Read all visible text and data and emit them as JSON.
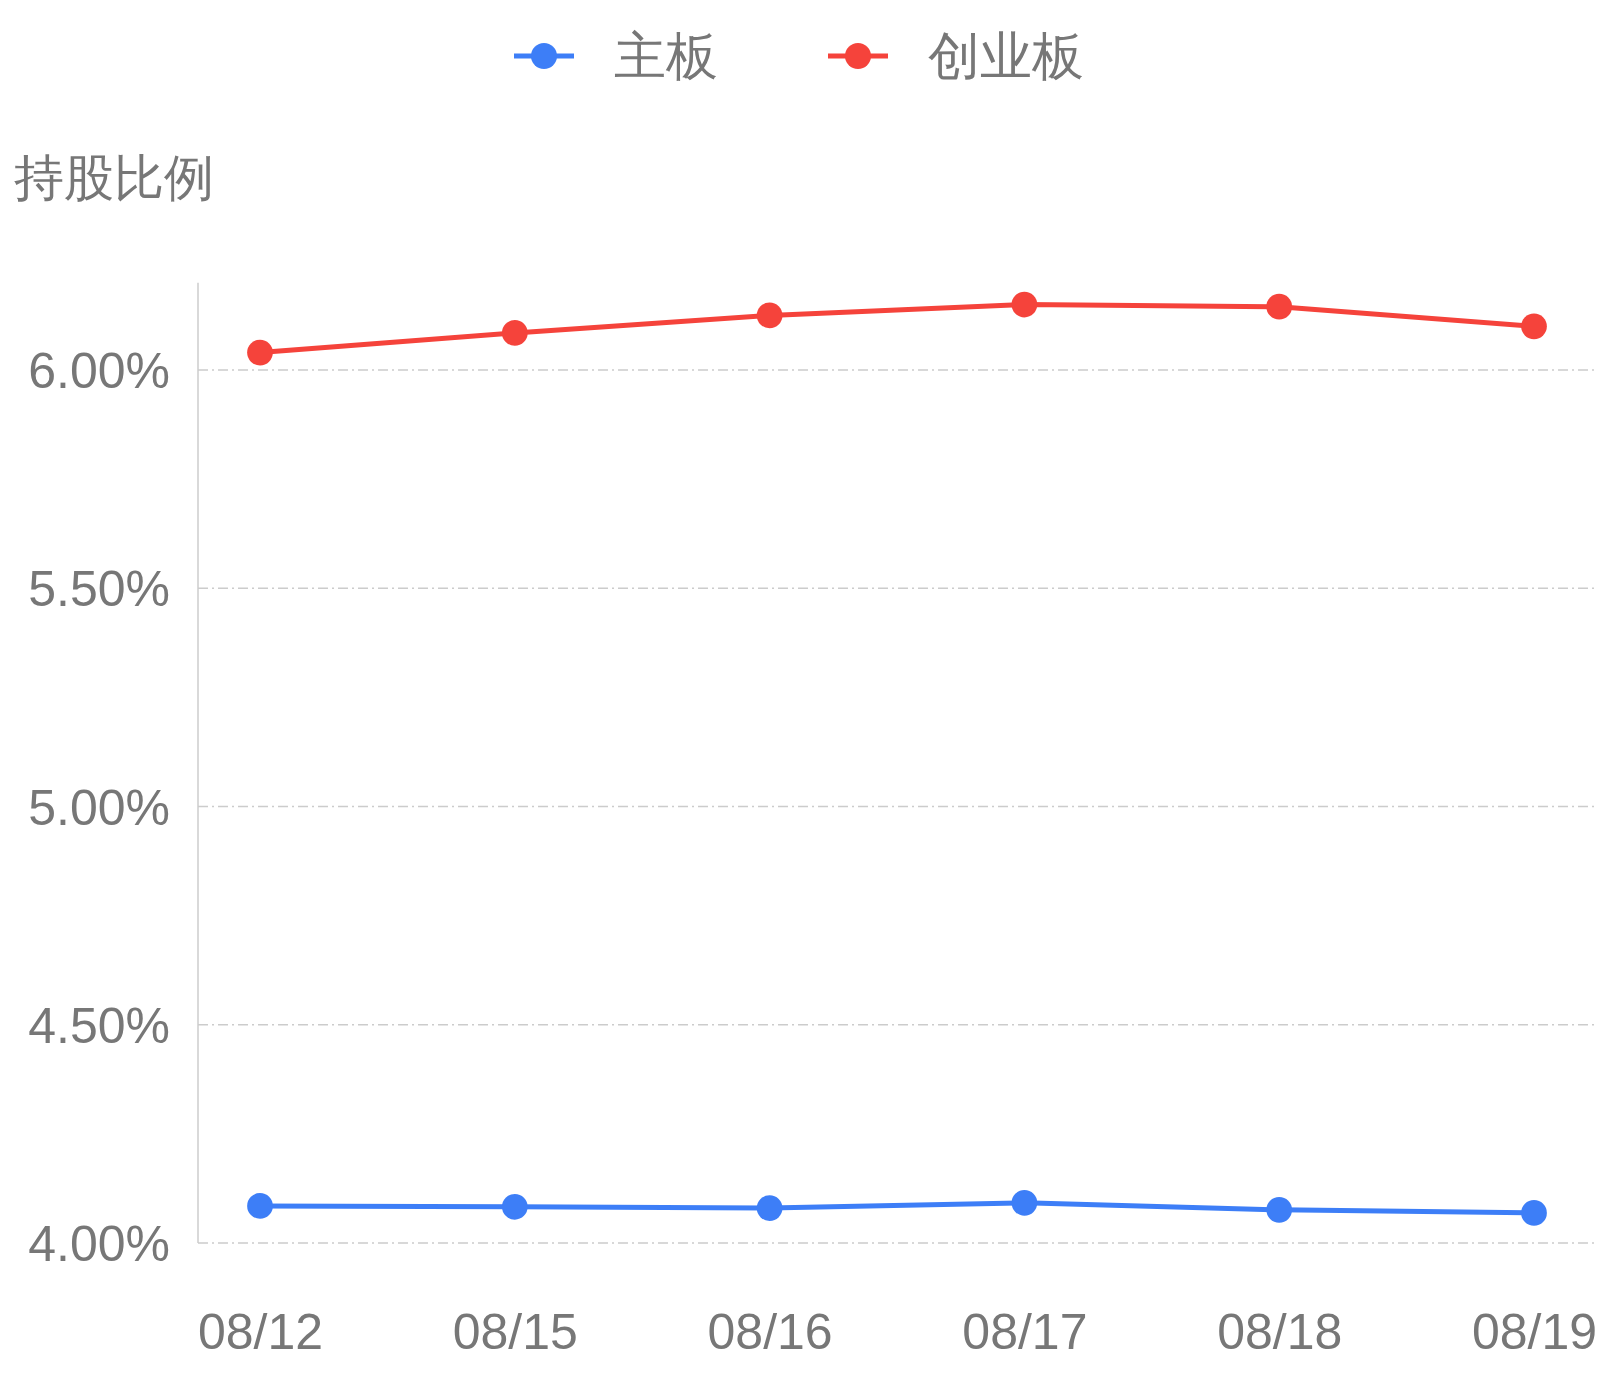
{
  "chart_data": {
    "type": "line",
    "ylabel": "持股比例",
    "categories": [
      "08/12",
      "08/15",
      "08/16",
      "08/17",
      "08/18",
      "08/19"
    ],
    "series": [
      {
        "name": "主板",
        "color": "#3d7ef7",
        "values": [
          4.085,
          4.083,
          4.08,
          4.092,
          4.076,
          4.069
        ]
      },
      {
        "name": "创业板",
        "color": "#f5433b",
        "values": [
          6.04,
          6.085,
          6.125,
          6.15,
          6.145,
          6.1
        ]
      }
    ],
    "yticks": [
      {
        "value": 4,
        "label": "4.00%"
      },
      {
        "value": 4.5,
        "label": "4.50%"
      },
      {
        "value": 5,
        "label": "5.00%"
      },
      {
        "value": 5.5,
        "label": "5.50%"
      },
      {
        "value": 6,
        "label": "6.00%"
      }
    ],
    "ylim": [
      4,
      6.2
    ],
    "grid": "y",
    "legend": "top",
    "marker": "circle",
    "line_style": "solid"
  }
}
